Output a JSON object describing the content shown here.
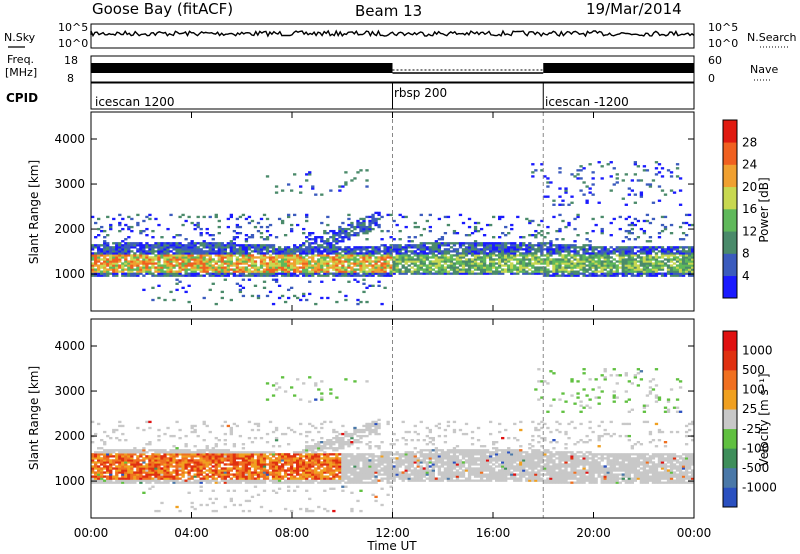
{
  "header": {
    "station": "Goose Bay (fitACF)",
    "beam": "Beam 13",
    "date": "19/Mar/2014"
  },
  "strips": {
    "nsky_label": "N.Sky",
    "nsky_ticks": [
      "10^5",
      "10^0"
    ],
    "nsearch_label": "N.Search",
    "nsearch_ticks": [
      "10^5",
      "10^0"
    ],
    "freq_label_1": "Freq.",
    "freq_label_2": "[MHz]",
    "freq_ticks": [
      "18",
      "8"
    ],
    "nave_label": "Nave",
    "nave_ticks": [
      "60",
      "0"
    ],
    "cpid_label": "CPID",
    "cpid_segments": [
      {
        "label": "icescan 1200",
        "start_hour": 0,
        "end_hour": 12
      },
      {
        "label": "rbsp 200",
        "start_hour": 12,
        "end_hour": 18
      },
      {
        "label": "icescan -1200",
        "start_hour": 18,
        "end_hour": 24
      }
    ]
  },
  "chart_data": [
    {
      "type": "heatmap",
      "name": "power",
      "ylabel": "Slant Range [km]",
      "yticks": [
        "1000",
        "2000",
        "3000",
        "4000"
      ],
      "ylim": [
        180,
        4600
      ],
      "xlim": [
        0,
        24
      ],
      "colorbar_label": "Power [dB]",
      "colorbar_ticks": [
        "4",
        "8",
        "12",
        "16",
        "20",
        "24",
        "28"
      ],
      "colorbar_colors": [
        "#1a1aff",
        "#3b5bbd",
        "#4a8a6a",
        "#5fb85a",
        "#c8d850",
        "#f0a030",
        "#f06020",
        "#e01a10"
      ],
      "bands": [
        {
          "start_hour": 0,
          "end_hour": 12,
          "range_km": [
            1000,
            1700
          ]
        },
        {
          "start_hour": 12,
          "end_hour": 18,
          "range_km": [
            1000,
            1700
          ]
        },
        {
          "start_hour": 18,
          "end_hour": 24,
          "range_km": [
            1000,
            1700
          ]
        }
      ]
    },
    {
      "type": "heatmap",
      "name": "velocity",
      "ylabel": "Slant Range [km]",
      "yticks": [
        "1000",
        "2000",
        "3000",
        "4000"
      ],
      "ylim": [
        180,
        4600
      ],
      "xlim": [
        0,
        24
      ],
      "xticks": [
        "00:00",
        "04:00",
        "08:00",
        "12:00",
        "16:00",
        "20:00",
        "00:00"
      ],
      "xlabel": "Time UT",
      "colorbar_label": "Velocity [m s⁻¹]",
      "colorbar_ticks": [
        "1000",
        "500",
        "100",
        "25",
        "-25",
        "-100",
        "-500",
        "-1000"
      ],
      "colorbar_colors": [
        "#2a50c0",
        "#4a78a8",
        "#3e8e5a",
        "#60c040",
        "#c8c8c8",
        "#f0a020",
        "#f07020",
        "#e03010",
        "#e01010"
      ]
    }
  ]
}
